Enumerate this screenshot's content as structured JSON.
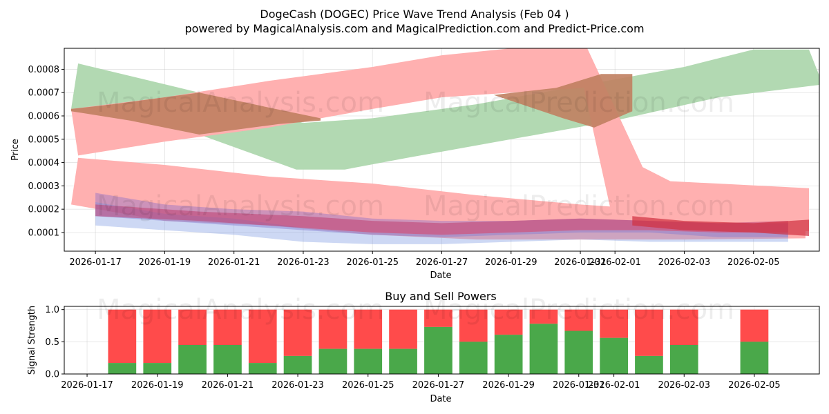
{
  "title_line1": "DogeCash (DOGEC) Price Wave Trend Analysis (Feb 04 )",
  "title_line2": "powered by MagicalAnalysis.com and MagicalPrediction.com and Predict-Price.com",
  "watermarks": [
    "MagicalAnalysis.com",
    "MagicalPrediction.com"
  ],
  "colors": {
    "green": "#4aa84a",
    "red": "#ff4b4b",
    "band_green": "#b2d9b2",
    "band_red": "#ffb0b0",
    "band_brown": "#c08060"
  },
  "chart_data": [
    {
      "type": "area",
      "title": "",
      "xlabel": "Date",
      "ylabel": "Price",
      "x_ticks": [
        "2026-01-17",
        "2026-01-19",
        "2026-01-21",
        "2026-01-23",
        "2026-01-25",
        "2026-01-27",
        "2026-01-29",
        "2026-01-31",
        "2026-02-01",
        "2026-02-03",
        "2026-02-05"
      ],
      "y_ticks": [
        "0.0001",
        "0.0002",
        "0.0003",
        "0.0004",
        "0.0005",
        "0.0006",
        "0.0007",
        "0.0008"
      ],
      "ylim": [
        2e-05,
        0.00089
      ],
      "xlim_days": [
        -0.9,
        20.9
      ],
      "grid": true,
      "bands": [
        {
          "name": "green-wave",
          "color": "#b2d9b2",
          "opacity": 1,
          "upper": [
            [
              -0.7,
              0.00063
            ],
            [
              -0.5,
              0.000825
            ],
            [
              3,
              0.0007
            ],
            [
              6,
              0.00057
            ],
            [
              8,
              0.00059
            ],
            [
              11,
              0.00065
            ],
            [
              14,
              0.00073
            ],
            [
              17,
              0.00081
            ],
            [
              19,
              0.000885
            ],
            [
              20.6,
              0.000885
            ]
          ],
          "lower": [
            [
              -0.7,
              0.00062
            ],
            [
              1,
              0.00058
            ],
            [
              3,
              0.00052
            ],
            [
              5.8,
              0.00037
            ],
            [
              7.2,
              0.00037
            ],
            [
              9,
              0.00042
            ],
            [
              12,
              0.0005
            ],
            [
              15,
              0.00058
            ],
            [
              18,
              0.00068
            ],
            [
              21,
              0.000735
            ]
          ]
        },
        {
          "name": "red-wave-upper",
          "color": "#ffb0b0",
          "opacity": 1,
          "upper": [
            [
              -0.7,
              0.00063
            ],
            [
              2,
              0.00068
            ],
            [
              5,
              0.00075
            ],
            [
              8,
              0.00081
            ],
            [
              10,
              0.00086
            ],
            [
              12,
              0.00089
            ],
            [
              14.2,
              0.00089
            ],
            [
              15.8,
              0.00038
            ],
            [
              16.6,
              0.00032
            ],
            [
              20.6,
              0.00029
            ]
          ],
          "lower": [
            [
              -0.5,
              0.00043
            ],
            [
              2,
              0.00049
            ],
            [
              5,
              0.00055
            ],
            [
              8,
              0.00063
            ],
            [
              10,
              0.00068
            ],
            [
              12,
              0.0007
            ],
            [
              14.1,
              0.00072
            ],
            [
              14.9,
              0.00018
            ],
            [
              15.7,
              0.00013
            ],
            [
              17.5,
              0.00012
            ],
            [
              20.6,
              0.000105
            ]
          ]
        },
        {
          "name": "brown-overlap-1",
          "color": "#c08060",
          "opacity": 0.9,
          "upper": [
            [
              -0.7,
              0.00063
            ],
            [
              0.5,
              0.00065
            ],
            [
              3,
              0.0007
            ],
            [
              5.2,
              0.00063
            ],
            [
              6.5,
              0.00059
            ]
          ],
          "lower": [
            [
              -0.7,
              0.00062
            ],
            [
              1,
              0.00058
            ],
            [
              3,
              0.00052
            ],
            [
              5.3,
              0.000565
            ],
            [
              6.5,
              0.00058
            ]
          ]
        },
        {
          "name": "brown-overlap-2",
          "color": "#c08060",
          "opacity": 0.9,
          "upper": [
            [
              11.5,
              0.00069
            ],
            [
              13.3,
              0.00072
            ],
            [
              14.6,
              0.00078
            ],
            [
              15.5,
              0.00078
            ]
          ],
          "lower": [
            [
              11.5,
              0.00069
            ],
            [
              13.5,
              0.00059
            ],
            [
              14.4,
              0.00055
            ],
            [
              15.5,
              0.00062
            ]
          ]
        },
        {
          "name": "red-wave-lower",
          "color": "#ffb0b0",
          "opacity": 1,
          "upper": [
            [
              -0.5,
              0.00042
            ],
            [
              2,
              0.00039
            ],
            [
              5,
              0.00034
            ],
            [
              8,
              0.00031
            ],
            [
              11,
              0.00026
            ],
            [
              14,
              0.00022
            ],
            [
              17,
              0.00019
            ],
            [
              20.5,
              0.00017
            ]
          ],
          "lower": [
            [
              -0.7,
              0.00022
            ],
            [
              2,
              0.00015
            ],
            [
              5,
              0.00013
            ],
            [
              8,
              9e-05
            ],
            [
              11,
              7e-05
            ],
            [
              14,
              7e-05
            ],
            [
              17,
              7e-05
            ],
            [
              20.5,
              7.5e-05
            ]
          ]
        },
        {
          "name": "violet-cluster",
          "color": "#9070c8",
          "opacity": 0.45,
          "upper": [
            [
              0,
              0.00027
            ],
            [
              2,
              0.00022
            ],
            [
              4,
              0.0002
            ],
            [
              6,
              0.00019
            ],
            [
              8,
              0.00016
            ],
            [
              10,
              0.00015
            ],
            [
              12,
              0.00015
            ],
            [
              14,
              0.00016
            ],
            [
              16,
              0.00015
            ],
            [
              18,
              0.00014
            ],
            [
              20,
              0.00014
            ]
          ],
          "lower": [
            [
              0,
              0.00017
            ],
            [
              2,
              0.00015
            ],
            [
              4,
              0.00013
            ],
            [
              6,
              0.00011
            ],
            [
              8,
              9e-05
            ],
            [
              10,
              8e-05
            ],
            [
              12,
              9e-05
            ],
            [
              14,
              0.0001
            ],
            [
              16,
              0.0001
            ],
            [
              18,
              8e-05
            ],
            [
              20,
              8e-05
            ]
          ]
        },
        {
          "name": "blue-cluster",
          "color": "#7090e0",
          "opacity": 0.35,
          "upper": [
            [
              0,
              0.00023
            ],
            [
              2,
              0.00018
            ],
            [
              4,
              0.00016
            ],
            [
              6,
              0.00012
            ],
            [
              8,
              0.0001
            ],
            [
              10,
              9e-05
            ],
            [
              12,
              0.0001
            ],
            [
              14,
              0.00011
            ],
            [
              16,
              0.00011
            ],
            [
              18,
              0.0001
            ],
            [
              20,
              0.0001
            ]
          ],
          "lower": [
            [
              0,
              0.00013
            ],
            [
              2,
              0.00011
            ],
            [
              4,
              9e-05
            ],
            [
              6,
              6e-05
            ],
            [
              8,
              5e-05
            ],
            [
              10,
              5e-05
            ],
            [
              12,
              6e-05
            ],
            [
              14,
              7e-05
            ],
            [
              16,
              6e-05
            ],
            [
              18,
              6e-05
            ],
            [
              20,
              6e-05
            ]
          ]
        },
        {
          "name": "magenta-cluster",
          "color": "#c04070",
          "opacity": 0.55,
          "upper": [
            [
              0,
              0.00022
            ],
            [
              3,
              0.00019
            ],
            [
              6,
              0.00017
            ],
            [
              8,
              0.00015
            ],
            [
              10,
              0.00014
            ],
            [
              12,
              0.00015
            ],
            [
              14,
              0.00016
            ],
            [
              16,
              0.00015
            ],
            [
              18,
              0.00014
            ],
            [
              20,
              0.00015
            ]
          ],
          "lower": [
            [
              0,
              0.00017
            ],
            [
              3,
              0.00015
            ],
            [
              6,
              0.00012
            ],
            [
              8,
              0.0001
            ],
            [
              10,
              9e-05
            ],
            [
              12,
              0.0001
            ],
            [
              14,
              0.00011
            ],
            [
              16,
              0.00011
            ],
            [
              18,
              0.0001
            ],
            [
              20,
              0.0001
            ]
          ]
        },
        {
          "name": "crimson-band",
          "color": "#d03040",
          "opacity": 0.7,
          "upper": [
            [
              15.5,
              0.00017
            ],
            [
              17,
              0.00015
            ],
            [
              19,
              0.00014
            ],
            [
              20.6,
              0.000155
            ]
          ],
          "lower": [
            [
              15.5,
              0.00013
            ],
            [
              17,
              0.00011
            ],
            [
              19,
              0.0001
            ],
            [
              20.6,
              8.5e-05
            ]
          ]
        }
      ]
    },
    {
      "type": "bar",
      "title": "Buy and Sell Powers",
      "xlabel": "Date",
      "ylabel": "Signal Strength",
      "ylim": [
        0,
        1.05
      ],
      "y_ticks": [
        "0.0",
        "0.5",
        "1.0"
      ],
      "x_ticks": [
        "2026-01-17",
        "2026-01-19",
        "2026-01-21",
        "2026-01-23",
        "2026-01-25",
        "2026-01-27",
        "2026-01-29",
        "2026-01-31",
        "2026-02-01",
        "2026-02-03",
        "2026-02-05"
      ],
      "xlim_days": [
        -0.65,
        20.85
      ],
      "series": [
        {
          "name": "Buy",
          "color": "#4aa84a"
        },
        {
          "name": "Sell",
          "color": "#ff4b4b"
        }
      ],
      "bars": [
        {
          "day": 1,
          "buy": 0.17
        },
        {
          "day": 2,
          "buy": 0.17
        },
        {
          "day": 3,
          "buy": 0.45
        },
        {
          "day": 4,
          "buy": 0.45
        },
        {
          "day": 5,
          "buy": 0.17
        },
        {
          "day": 6,
          "buy": 0.28
        },
        {
          "day": 7,
          "buy": 0.39
        },
        {
          "day": 8,
          "buy": 0.39
        },
        {
          "day": 9,
          "buy": 0.39
        },
        {
          "day": 10,
          "buy": 0.73
        },
        {
          "day": 11,
          "buy": 0.5
        },
        {
          "day": 12,
          "buy": 0.61
        },
        {
          "day": 13,
          "buy": 0.78
        },
        {
          "day": 14,
          "buy": 0.67
        },
        {
          "day": 15,
          "buy": 0.56
        },
        {
          "day": 16,
          "buy": 0.28
        },
        {
          "day": 17,
          "buy": 0.45
        },
        {
          "day": 19,
          "buy": 0.5
        }
      ]
    }
  ]
}
